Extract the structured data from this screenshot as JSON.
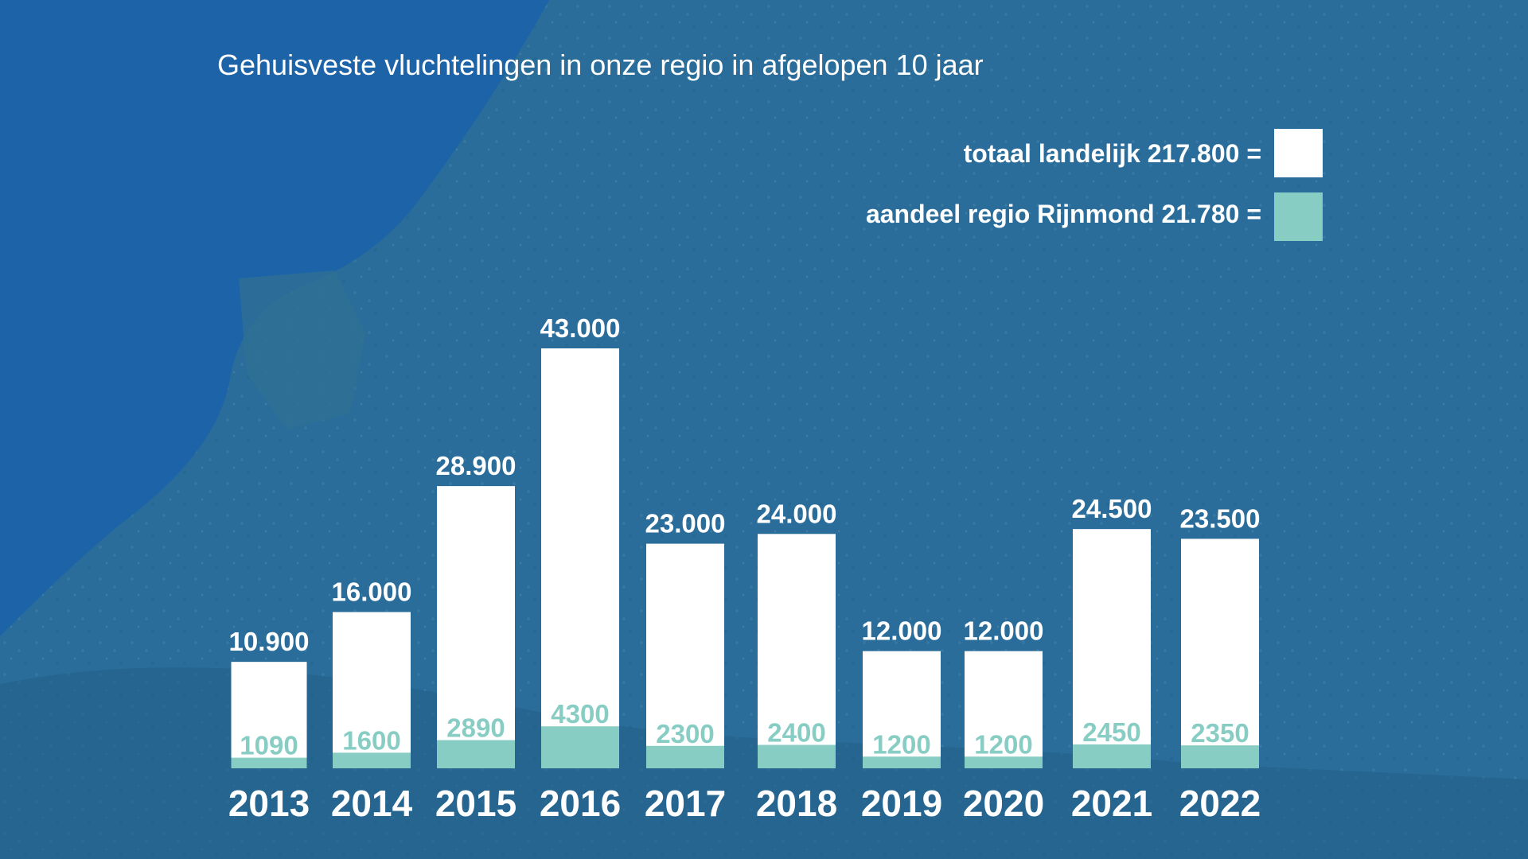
{
  "colors": {
    "background": "#1f5f91",
    "sea": "#1c63a8",
    "total_bar": "#ffffff",
    "region_bar": "#88cdc4",
    "text": "#ffffff"
  },
  "chart_data": {
    "type": "bar",
    "title": "Gehuisveste vluchtelingen in onze regio in afgelopen 10 jaar",
    "categories": [
      "2013",
      "2014",
      "2015",
      "2016",
      "2017",
      "2018",
      "2019",
      "2020",
      "2021",
      "2022"
    ],
    "series": [
      {
        "key": "total",
        "legend": "totaal landelijk 217.800 =",
        "values": [
          10900,
          16000,
          28900,
          43000,
          23000,
          24000,
          12000,
          12000,
          24500,
          23500
        ],
        "labels": [
          "10.900",
          "16.000",
          "28.900",
          "43.000",
          "23.000",
          "24.000",
          "12.000",
          "12.000",
          "24.500",
          "23.500"
        ],
        "color": "#ffffff"
      },
      {
        "key": "region",
        "legend": "aandeel regio Rijnmond 21.780 =",
        "values": [
          1090,
          1600,
          2890,
          4300,
          2300,
          2400,
          1200,
          1200,
          2450,
          2350
        ],
        "labels": [
          "1090",
          "1600",
          "2890",
          "4300",
          "2300",
          "2400",
          "1200",
          "1200",
          "2450",
          "2350"
        ],
        "color": "#88cdc4"
      }
    ],
    "legend_position": "top-right",
    "grid": false
  }
}
